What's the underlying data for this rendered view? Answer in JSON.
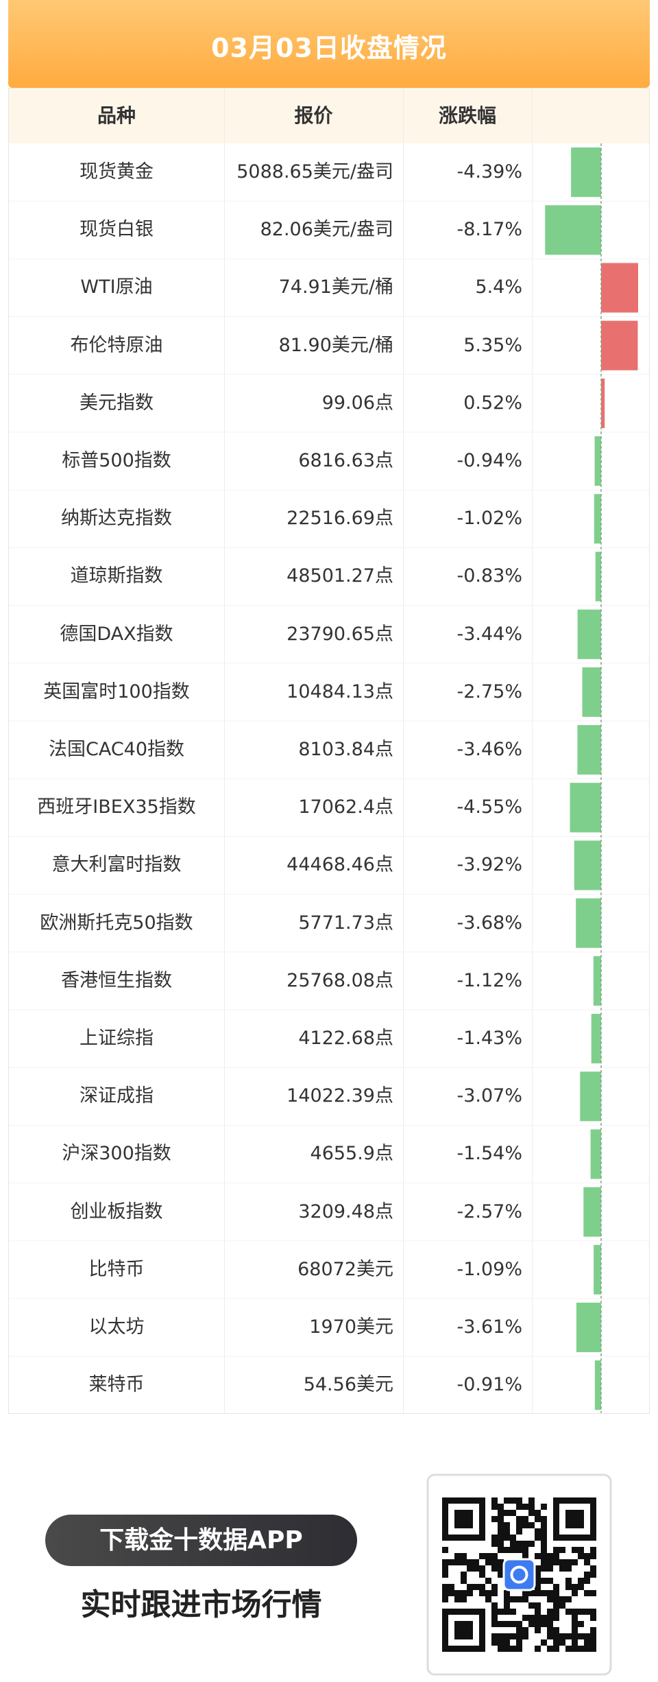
{
  "header": {
    "title": "03月03日收盘情况"
  },
  "table": {
    "columns": [
      "品种",
      "报价",
      "涨跌幅"
    ],
    "rows": [
      [
        "现货黄金",
        "5088.65美元/盎司"
      ],
      [
        "现货白银",
        "82.06美元/盎司"
      ],
      [
        "WTI原油",
        "74.91美元/桶"
      ],
      [
        "布伦特原油",
        "81.90美元/桶"
      ],
      [
        "美元指数",
        "99.06点"
      ],
      [
        "标普500指数",
        "6816.63点"
      ],
      [
        "纳斯达克指数",
        "22516.69点"
      ],
      [
        "道琼斯指数",
        "48501.27点"
      ],
      [
        "德国DAX指数",
        "23790.65点"
      ],
      [
        "英国富时100指数",
        "10484.13点"
      ],
      [
        "法国CAC40指数",
        "8103.84点"
      ],
      [
        "西班牙IBEX35指数",
        "17062.4点"
      ],
      [
        "意大利富时指数",
        "44468.46点"
      ],
      [
        "欧洲斯托克50指数",
        "5771.73点"
      ],
      [
        "香港恒生指数",
        "25768.08点"
      ],
      [
        "上证综指",
        "4122.68点"
      ],
      [
        "深证成指",
        "14022.39点"
      ],
      [
        "沪深300指数",
        "4655.9点"
      ],
      [
        "创业板指数",
        "3209.48点"
      ],
      [
        "比特币",
        "68072美元"
      ],
      [
        "以太坊",
        "1970美元"
      ],
      [
        "莱特币",
        "54.56美元"
      ]
    ],
    "changes": {
      "values": [
        -4.39,
        -8.17,
        5.4,
        5.35,
        0.52,
        -0.94,
        -1.02,
        -0.83,
        -3.44,
        -2.75,
        -3.46,
        -4.55,
        -3.92,
        -3.68,
        -1.12,
        -1.43,
        -3.07,
        -1.54,
        -2.57,
        -1.09,
        -3.61,
        -0.91
      ],
      "value_labels": [
        "-4.39%",
        "-8.17%",
        "5.4%",
        "5.35%",
        "0.52%",
        "-0.94%",
        "-1.02%",
        "-0.83%",
        "-3.44%",
        "-2.75%",
        "-3.46%",
        "-4.55%",
        "-3.92%",
        "-3.68%",
        "-1.12%",
        "-1.43%",
        "-3.07%",
        "-1.54%",
        "-2.57%",
        "-1.09%",
        "-3.61%",
        "-0.91%"
      ],
      "up_color": "#e8716f",
      "down_color": "#7fcf8c"
    }
  },
  "footer": {
    "button": "下载金十数据APP",
    "slogan": "实时跟进市场行情"
  }
}
